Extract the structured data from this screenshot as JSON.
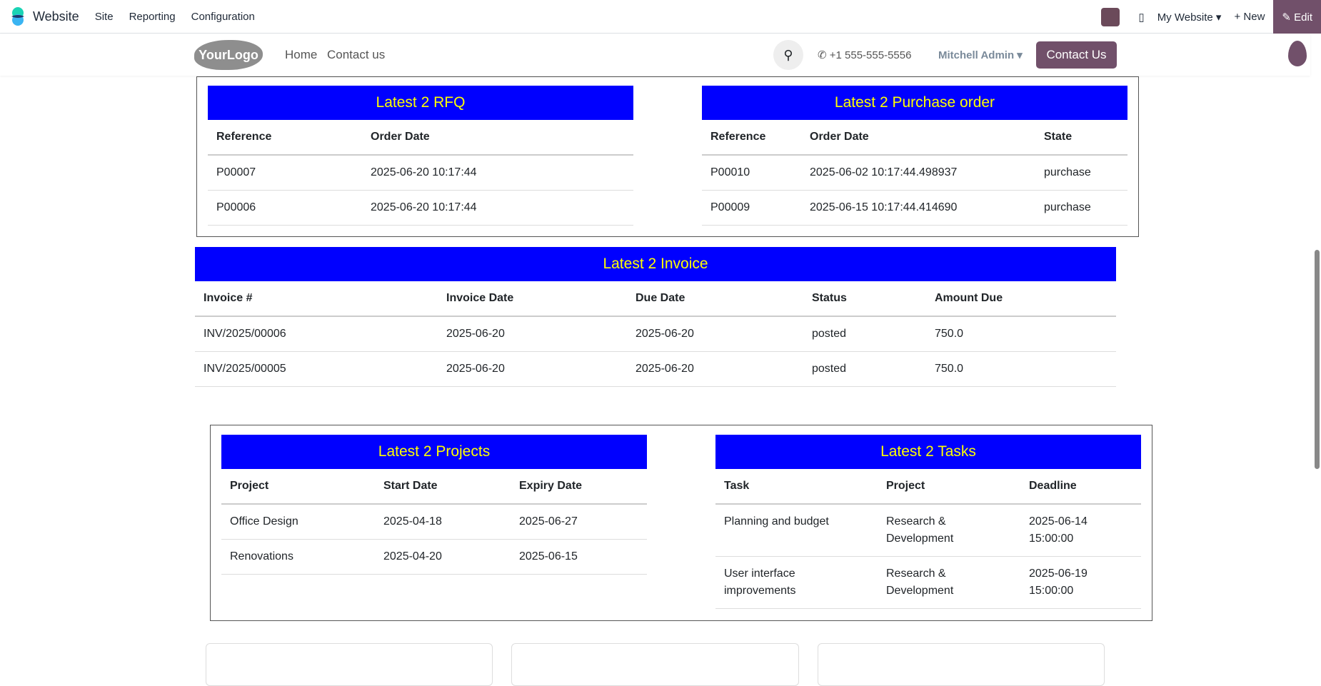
{
  "topbar": {
    "app": "Website",
    "menus": [
      "Site",
      "Reporting",
      "Configuration"
    ],
    "website": "My Website ▾",
    "new": "+ New",
    "edit": "✎ Edit"
  },
  "sitenav": {
    "logo": "YourLogo",
    "links": [
      "Home",
      "Contact us"
    ],
    "phone": "+1 555-555-5556",
    "user": "Mitchell Admin ▾",
    "contact": "Contact Us"
  },
  "rfq": {
    "title": "Latest 2 RFQ",
    "headers": [
      "Reference",
      "Order Date"
    ],
    "rows": [
      [
        "P00007",
        "2025-06-20 10:17:44"
      ],
      [
        "P00006",
        "2025-06-20 10:17:44"
      ]
    ]
  },
  "po": {
    "title": "Latest 2 Purchase order",
    "headers": [
      "Reference",
      "Order Date",
      "State"
    ],
    "rows": [
      [
        "P00010",
        "2025-06-02 10:17:44.498937",
        "purchase"
      ],
      [
        "P00009",
        "2025-06-15 10:17:44.414690",
        "purchase"
      ]
    ]
  },
  "invoice": {
    "title": "Latest 2 Invoice",
    "headers": [
      "Invoice #",
      "Invoice Date",
      "Due Date",
      "Status",
      "Amount Due"
    ],
    "rows": [
      [
        "INV/2025/00006",
        "2025-06-20",
        "2025-06-20",
        "posted",
        "750.0"
      ],
      [
        "INV/2025/00005",
        "2025-06-20",
        "2025-06-20",
        "posted",
        "750.0"
      ]
    ]
  },
  "projects": {
    "title": "Latest 2 Projects",
    "headers": [
      "Project",
      "Start Date",
      "Expiry Date"
    ],
    "rows": [
      [
        "Office Design",
        "2025-04-18",
        "2025-06-27"
      ],
      [
        "Renovations",
        "2025-04-20",
        "2025-06-15"
      ]
    ]
  },
  "tasks": {
    "title": "Latest 2 Tasks",
    "headers": [
      "Task",
      "Project",
      "Deadline"
    ],
    "rows": [
      [
        "Planning and budget",
        "Research & Development",
        "2025-06-14 15:00:00"
      ],
      [
        "User interface improvements",
        "Research & Development",
        "2025-06-19 15:00:00"
      ]
    ]
  },
  "colors": {
    "header_bg": "#0000ff",
    "header_text": "#ffff00",
    "brand": "#71506a"
  }
}
